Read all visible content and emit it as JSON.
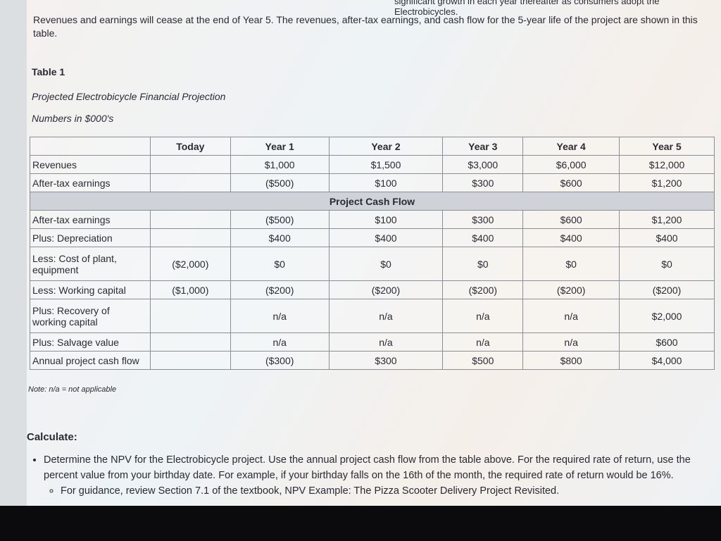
{
  "intro": {
    "lead": "significant growth in each year thereafter as consumers adopt the Electrobicycles.",
    "paragraph": "Revenues and earnings will cease at the end of Year 5. The revenues, after-tax earnings, and cash flow for the 5-year life of the project are shown in this table."
  },
  "table": {
    "label": "Table 1",
    "caption": "Projected Electrobicycle Financial Projection",
    "units": "Numbers in $000's",
    "header": [
      null,
      "Today",
      "Year 1",
      "Year 2",
      "Year 3",
      "Year 4",
      "Year 5"
    ],
    "rows": [
      [
        "Revenues",
        null,
        "$1,000",
        "$1,500",
        "$3,000",
        "$6,000",
        "$12,000"
      ],
      [
        "After-tax earnings",
        null,
        "($500)",
        "$100",
        "$300",
        "$600",
        "$1,200"
      ]
    ],
    "section": "Project Cash Flow",
    "cash_rows": [
      [
        "After-tax earnings",
        null,
        "($500)",
        "$100",
        "$300",
        "$600",
        "$1,200"
      ],
      [
        "Plus: Depreciation",
        null,
        "$400",
        "$400",
        "$400",
        "$400",
        "$400"
      ],
      [
        "Less: Cost of plant, equipment",
        "($2,000)",
        "$0",
        "$0",
        "$0",
        "$0",
        "$0"
      ],
      [
        "Less: Working capital",
        "($1,000)",
        "($200)",
        "($200)",
        "($200)",
        "($200)",
        "($200)"
      ],
      [
        "Plus: Recovery of working capital",
        null,
        "n/a",
        "n/a",
        "n/a",
        "n/a",
        "$2,000"
      ],
      [
        "Plus: Salvage value",
        null,
        "n/a",
        "n/a",
        "n/a",
        "n/a",
        "$600"
      ],
      [
        "Annual project cash flow",
        null,
        "($300)",
        "$300",
        "$500",
        "$800",
        "$4,000"
      ]
    ],
    "note": "Note: n/a = not applicable"
  },
  "calculate": {
    "heading": "Calculate:",
    "bullet": "Determine the NPV for the Electrobicycle project. Use the annual project cash flow from the table above. For the required rate of return, use the percent value from your birthday date. For example, if your birthday falls on the 16th of the month, the required rate of return would be 16%.",
    "sub_bullet": "For guidance, review Section 7.1 of the textbook, NPV Example: The Pizza Scooter Delivery Project Revisited."
  }
}
